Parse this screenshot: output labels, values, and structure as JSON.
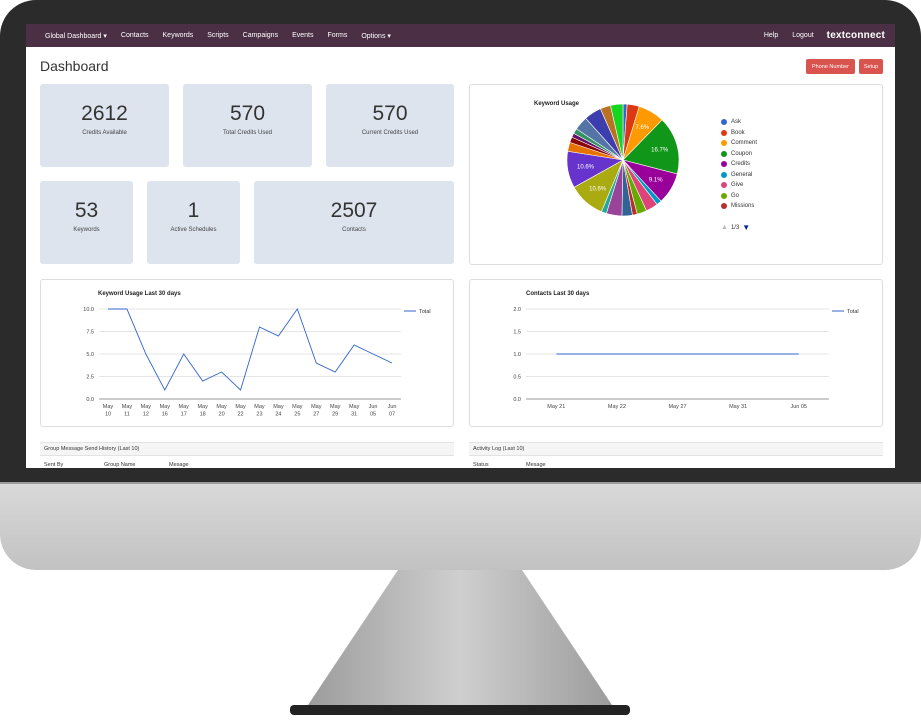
{
  "nav": {
    "items": [
      "Global Dashboard ▾",
      "Contacts",
      "Keywords",
      "Scripts",
      "Campaigns",
      "Events",
      "Forms",
      "Options ▾"
    ],
    "right": [
      "Help",
      "Logout"
    ],
    "brand": "textconnect"
  },
  "header": {
    "title": "Dashboard",
    "phone_button": "Phone Number",
    "setup_button": "Setup"
  },
  "stats": {
    "credits_available": {
      "value": "2612",
      "label": "Credits Available"
    },
    "total_credits_used": {
      "value": "570",
      "label": "Total Credits Used"
    },
    "current_credits_used": {
      "value": "570",
      "label": "Current Credits Used"
    },
    "keywords": {
      "value": "53",
      "label": "Keywords"
    },
    "active_schedules": {
      "value": "1",
      "label": "Active Schedules"
    },
    "contacts": {
      "value": "2507",
      "label": "Contacts"
    }
  },
  "chart_data": [
    {
      "type": "pie",
      "title": "Keyword Usage",
      "legend_position": "right",
      "legend": [
        {
          "name": "Ask",
          "color": "#3366cc"
        },
        {
          "name": "Book",
          "color": "#dc3912"
        },
        {
          "name": "Comment",
          "color": "#ff9900"
        },
        {
          "name": "Coupon",
          "color": "#109618"
        },
        {
          "name": "Credits",
          "color": "#990099"
        },
        {
          "name": "General",
          "color": "#0099c6"
        },
        {
          "name": "Give",
          "color": "#dd4477"
        },
        {
          "name": "Go",
          "color": "#66aa00"
        },
        {
          "name": "Missions",
          "color": "#b82e2e"
        }
      ],
      "legend_page": "1/3",
      "slices": [
        {
          "value": 1.2,
          "color": "#3366cc",
          "label": ""
        },
        {
          "value": 3.5,
          "color": "#dc3912",
          "label": ""
        },
        {
          "value": 7.6,
          "color": "#ff9900",
          "label": "7.6%"
        },
        {
          "value": 16.7,
          "color": "#109618",
          "label": "16.7%"
        },
        {
          "value": 9.1,
          "color": "#990099",
          "label": "9.1%"
        },
        {
          "value": 1.5,
          "color": "#0099c6",
          "label": ""
        },
        {
          "value": 3.5,
          "color": "#dd4477",
          "label": ""
        },
        {
          "value": 2.8,
          "color": "#66aa00",
          "label": ""
        },
        {
          "value": 1.4,
          "color": "#b82e2e",
          "label": ""
        },
        {
          "value": 3.0,
          "color": "#316395",
          "label": ""
        },
        {
          "value": 4.5,
          "color": "#994499",
          "label": ""
        },
        {
          "value": 1.5,
          "color": "#22aa99",
          "label": ""
        },
        {
          "value": 10.6,
          "color": "#aaaa11",
          "label": "10.6%"
        },
        {
          "value": 10.6,
          "color": "#6633cc",
          "label": "10.6%"
        },
        {
          "value": 2.6,
          "color": "#e67300",
          "label": ""
        },
        {
          "value": 1.6,
          "color": "#8b0707",
          "label": ""
        },
        {
          "value": 1.2,
          "color": "#651067",
          "label": ""
        },
        {
          "value": 1.5,
          "color": "#329262",
          "label": ""
        },
        {
          "value": 4.0,
          "color": "#5574a6",
          "label": ""
        },
        {
          "value": 5.0,
          "color": "#3b3eac",
          "label": ""
        },
        {
          "value": 3.0,
          "color": "#b77322",
          "label": ""
        },
        {
          "value": 3.6,
          "color": "#16d620",
          "label": ""
        }
      ]
    },
    {
      "type": "line",
      "title": "Keyword Usage Last 30 days",
      "legend_position": "right",
      "categories": [
        "May 10",
        "May 11",
        "May 12",
        "May 16",
        "May 17",
        "May 18",
        "May 20",
        "May 22",
        "May 23",
        "May 24",
        "May 25",
        "May 27",
        "May 29",
        "May 31",
        "Jun 05",
        "Jun 07"
      ],
      "series": [
        {
          "name": "Total",
          "values": [
            10,
            10,
            5,
            1,
            5,
            2,
            3,
            1,
            8,
            7,
            10,
            4,
            3,
            6,
            5,
            4
          ],
          "color": "#3366cc"
        }
      ],
      "yticks": [
        "10.0",
        "7.5",
        "5.0",
        "2.5",
        "0.0"
      ],
      "ylim": [
        0,
        10
      ]
    },
    {
      "type": "line",
      "title": "Contacts Last 30 days",
      "legend_position": "right",
      "categories": [
        "May 21",
        "May 22",
        "May 27",
        "May 31",
        "Jun 05"
      ],
      "series": [
        {
          "name": "Total",
          "values": [
            1,
            1,
            1,
            1,
            1
          ],
          "color": "#3366cc"
        }
      ],
      "yticks": [
        "2.0",
        "1.5",
        "1.0",
        "0.5",
        "0.0"
      ],
      "ylim": [
        0,
        2
      ]
    }
  ],
  "tables": {
    "group_history": {
      "title": "Group Message Send History (Last 10)",
      "columns": [
        "Sent By",
        "Group Name",
        "Mesage"
      ]
    },
    "activity_log": {
      "title": "Activity Log (Last 10)",
      "columns": [
        "Status",
        "Mesage"
      ]
    }
  }
}
